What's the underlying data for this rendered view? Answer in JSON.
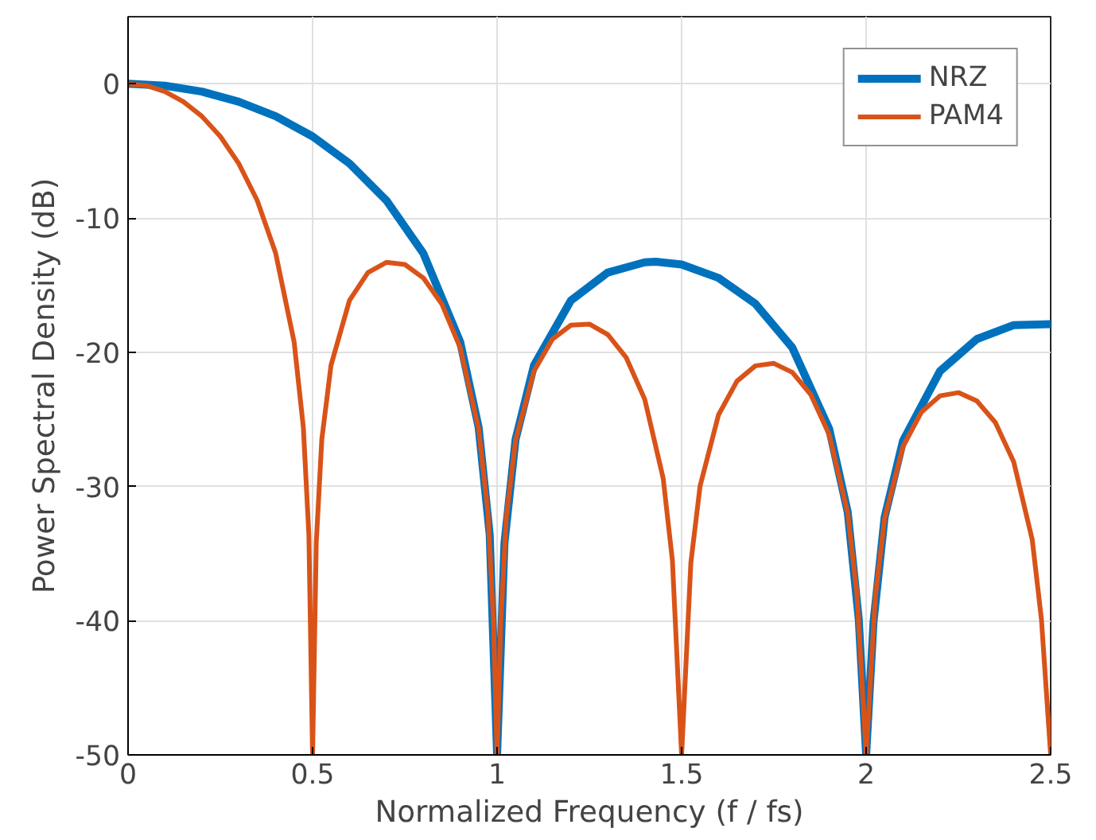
{
  "chart_data": {
    "type": "line",
    "xlabel": "Normalized Frequency (f / fs)",
    "ylabel": "Power Spectral Density (dB)",
    "xlim": [
      0,
      2.5
    ],
    "ylim": [
      -50,
      5
    ],
    "xticks": [
      0,
      0.5,
      1,
      1.5,
      2,
      2.5
    ],
    "yticks": [
      -50,
      -40,
      -30,
      -20,
      -10,
      0
    ],
    "grid": true,
    "legend": "top right",
    "line_style": "solid",
    "marker": "none",
    "series": [
      {
        "name": "NRZ",
        "color": "#0072bd",
        "x": [
          0,
          0.1,
          0.2,
          0.3,
          0.4,
          0.5,
          0.6,
          0.7,
          0.8,
          0.9,
          0.95,
          0.98,
          1.0,
          1.02,
          1.05,
          1.1,
          1.2,
          1.3,
          1.4,
          1.43,
          1.5,
          1.6,
          1.7,
          1.8,
          1.9,
          1.95,
          1.98,
          2.0,
          2.02,
          2.05,
          2.1,
          2.2,
          2.3,
          2.4,
          2.5
        ],
        "values": [
          0,
          -0.14,
          -0.58,
          -1.33,
          -2.42,
          -3.92,
          -5.94,
          -8.69,
          -12.62,
          -19.23,
          -25.6,
          -33.6,
          -50,
          -34.2,
          -26.5,
          -20.97,
          -16.14,
          -14.06,
          -13.3,
          -13.26,
          -13.46,
          -14.46,
          -16.39,
          -19.66,
          -25.72,
          -31.9,
          -39.9,
          -50,
          -40.1,
          -32.3,
          -26.59,
          -21.41,
          -19.02,
          -17.98,
          -17.9
        ]
      },
      {
        "name": "PAM4",
        "color": "#d95319",
        "x": [
          0,
          0.05,
          0.1,
          0.15,
          0.2,
          0.25,
          0.3,
          0.35,
          0.4,
          0.45,
          0.475,
          0.49,
          0.5,
          0.51,
          0.525,
          0.55,
          0.6,
          0.65,
          0.7,
          0.75,
          0.8,
          0.85,
          0.9,
          0.95,
          0.975,
          0.99,
          1.0,
          1.01,
          1.025,
          1.05,
          1.1,
          1.15,
          1.2,
          1.25,
          1.3,
          1.35,
          1.4,
          1.45,
          1.475,
          1.5,
          1.525,
          1.55,
          1.6,
          1.65,
          1.7,
          1.75,
          1.8,
          1.85,
          1.9,
          1.95,
          1.975,
          2.0,
          2.025,
          2.05,
          2.1,
          2.15,
          2.2,
          2.25,
          2.3,
          2.35,
          2.4,
          2.45,
          2.475,
          2.5
        ],
        "values": [
          0,
          -0.14,
          -0.58,
          -1.33,
          -2.42,
          -3.92,
          -5.94,
          -8.69,
          -12.62,
          -19.23,
          -25.6,
          -33.6,
          -50,
          -34.2,
          -26.5,
          -20.97,
          -16.14,
          -14.06,
          -13.3,
          -13.46,
          -14.46,
          -16.39,
          -19.66,
          -25.72,
          -31.9,
          -39.9,
          -50,
          -40.1,
          -32.3,
          -26.59,
          -21.41,
          -19.02,
          -17.98,
          -17.9,
          -18.68,
          -20.41,
          -23.5,
          -29.39,
          -35.5,
          -50,
          -35.7,
          -29.97,
          -24.66,
          -22.15,
          -21.01,
          -20.83,
          -21.5,
          -23.15,
          -26.15,
          -31.97,
          -38.0,
          -50,
          -38.2,
          -32.4,
          -27.02,
          -24.45,
          -23.25,
          -23.01,
          -23.63,
          -25.23,
          -28.18,
          -33.95,
          -39.9,
          -50
        ]
      }
    ]
  }
}
